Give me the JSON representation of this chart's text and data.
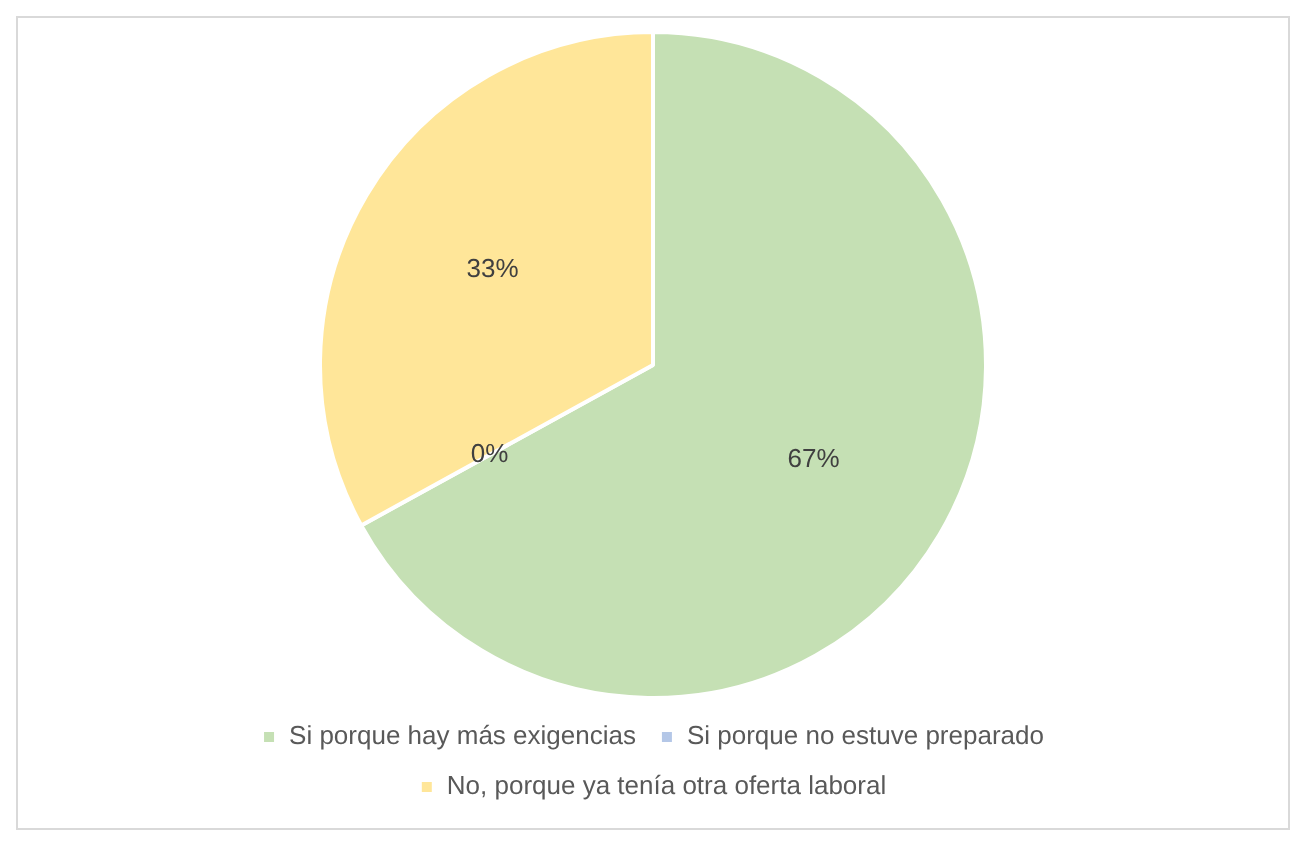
{
  "chart_data": {
    "type": "pie",
    "categories": [
      "Si porque hay más exigencias",
      "Si porque no estuve preparado",
      "No, porque ya tenía otra oferta laboral"
    ],
    "values": [
      67,
      0,
      33
    ],
    "colors": [
      "#c5e0b4",
      "#b4c7e7",
      "#ffe699"
    ],
    "value_labels": [
      "67%",
      "0%",
      "33%"
    ],
    "legend": "bottom"
  }
}
